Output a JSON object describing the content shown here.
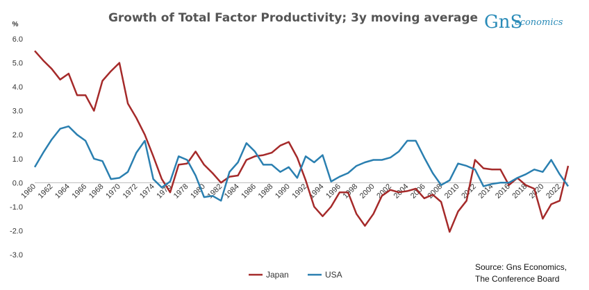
{
  "chart_data": {
    "type": "line",
    "title": "Growth of Total Factor Productivity; 3y moving average",
    "ylabel": "%",
    "xlabel": "",
    "ylim": [
      -3.0,
      6.0
    ],
    "y_ticks": [
      "6.0",
      "5.0",
      "4.0",
      "3.0",
      "2.0",
      "1.0",
      "0.0",
      "-1.0",
      "-2.0",
      "-3.0"
    ],
    "y_tick_values": [
      6,
      5,
      4,
      3,
      2,
      1,
      0,
      -1,
      -2,
      -3
    ],
    "x_ticks": [
      "1960",
      "1962",
      "1964",
      "1966",
      "1968",
      "1970",
      "1972",
      "1974",
      "1976",
      "1978",
      "1980",
      "1982",
      "1984",
      "1986",
      "1988",
      "1990",
      "1992",
      "1994",
      "1996",
      "1998",
      "2000",
      "2002",
      "2004",
      "2006",
      "2008",
      "2010",
      "2012",
      "2014",
      "2016",
      "2018",
      "2020",
      "2022"
    ],
    "x": [
      1960,
      1961,
      1962,
      1963,
      1964,
      1965,
      1966,
      1967,
      1968,
      1969,
      1970,
      1971,
      1972,
      1973,
      1974,
      1975,
      1976,
      1977,
      1978,
      1979,
      1980,
      1981,
      1982,
      1983,
      1984,
      1985,
      1986,
      1987,
      1988,
      1989,
      1990,
      1991,
      1992,
      1993,
      1994,
      1995,
      1996,
      1997,
      1998,
      1999,
      2000,
      2001,
      2002,
      2003,
      2004,
      2005,
      2006,
      2007,
      2008,
      2009,
      2010,
      2011,
      2012,
      2013,
      2014,
      2015,
      2016,
      2017,
      2018,
      2019,
      2020,
      2021,
      2022,
      2023
    ],
    "series": [
      {
        "name": "Japan",
        "color": "#a52a2a",
        "values": [
          5.5,
          5.1,
          4.75,
          4.3,
          4.55,
          3.65,
          3.65,
          3.0,
          4.25,
          4.65,
          5.0,
          3.3,
          2.7,
          2.0,
          1.1,
          0.15,
          -0.4,
          0.75,
          0.8,
          1.3,
          0.75,
          0.4,
          0.0,
          0.25,
          0.3,
          0.95,
          1.1,
          1.15,
          1.25,
          1.55,
          1.7,
          1.05,
          0.1,
          -1.0,
          -1.4,
          -1.0,
          -0.4,
          -0.4,
          -1.3,
          -1.8,
          -1.3,
          -0.55,
          -0.3,
          -0.4,
          -0.35,
          -0.25,
          -0.65,
          -0.5,
          -0.8,
          -2.05,
          -1.2,
          -0.75,
          0.95,
          0.6,
          0.55,
          0.55,
          -0.1,
          0.2,
          -0.1,
          -0.25,
          -1.5,
          -0.9,
          -0.75,
          0.7
        ]
      },
      {
        "name": "USA",
        "color": "#2a7fb0",
        "values": [
          0.65,
          1.25,
          1.8,
          2.25,
          2.35,
          2.0,
          1.75,
          1.0,
          0.9,
          0.15,
          0.2,
          0.45,
          1.25,
          1.75,
          0.15,
          -0.2,
          0.05,
          1.1,
          0.95,
          0.3,
          -0.6,
          -0.55,
          -0.75,
          0.45,
          0.85,
          1.65,
          1.3,
          0.75,
          0.75,
          0.45,
          0.65,
          0.2,
          1.1,
          0.85,
          1.15,
          0.05,
          0.25,
          0.4,
          0.7,
          0.85,
          0.95,
          0.95,
          1.05,
          1.3,
          1.75,
          1.75,
          1.05,
          0.4,
          -0.1,
          0.1,
          0.8,
          0.7,
          0.55,
          -0.15,
          -0.05,
          0.0,
          0.0,
          0.2,
          0.35,
          0.55,
          0.45,
          0.95,
          0.35,
          -0.15
        ]
      }
    ],
    "legend": "bottom-center",
    "grid": false
  },
  "logo": {
    "main": "GnS",
    "sub": "economics"
  },
  "source": {
    "line1": "Source: Gns Economics,",
    "line2": "The Conference Board"
  }
}
